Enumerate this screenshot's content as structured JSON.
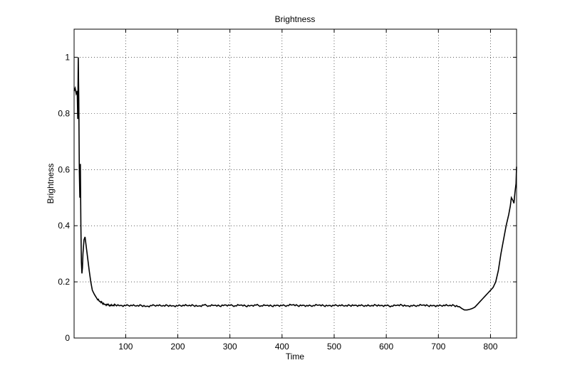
{
  "chart_data": {
    "type": "line",
    "title": "Brightness",
    "xlabel": "Time",
    "ylabel": "Brightness",
    "xlim": [
      1,
      850
    ],
    "ylim": [
      0,
      1.1
    ],
    "xticks": [
      100,
      200,
      300,
      400,
      500,
      600,
      700,
      800
    ],
    "yticks": [
      0,
      0.2,
      0.4,
      0.6,
      0.8,
      1
    ],
    "ytick_labels": [
      "0",
      "0.2",
      "0.4",
      "0.6",
      "0.8",
      "1"
    ],
    "grid": true,
    "line_color": "#000000",
    "series": [
      {
        "x": [
          1,
          3,
          5,
          7,
          8,
          9,
          10,
          11,
          12,
          13,
          14,
          15,
          16,
          17,
          18,
          20,
          22,
          24,
          26,
          28,
          30,
          33,
          36,
          40,
          45,
          50,
          55,
          60,
          65,
          70,
          75,
          80,
          90,
          100,
          110,
          120,
          130,
          140,
          150,
          160,
          170,
          180,
          190,
          200,
          210,
          220,
          230,
          240,
          250,
          260,
          270,
          280,
          290,
          300,
          310,
          320,
          330,
          340,
          350,
          360,
          370,
          380,
          390,
          400,
          410,
          420,
          430,
          440,
          450,
          460,
          470,
          480,
          490,
          500,
          510,
          520,
          530,
          540,
          550,
          560,
          570,
          580,
          590,
          600,
          610,
          620,
          630,
          640,
          650,
          660,
          670,
          680,
          690,
          700,
          710,
          720,
          730,
          740,
          745,
          750,
          755,
          760,
          765,
          770,
          775,
          780,
          785,
          790,
          795,
          800,
          805,
          810,
          815,
          820,
          825,
          830,
          835,
          838,
          840,
          843,
          845,
          847,
          849,
          850
        ],
        "y": [
          0.88,
          0.89,
          0.87,
          0.88,
          0.78,
          1.0,
          0.85,
          0.6,
          0.5,
          0.62,
          0.4,
          0.27,
          0.23,
          0.25,
          0.3,
          0.35,
          0.36,
          0.33,
          0.3,
          0.27,
          0.24,
          0.2,
          0.17,
          0.155,
          0.14,
          0.13,
          0.125,
          0.12,
          0.118,
          0.117,
          0.115,
          0.118,
          0.116,
          0.115,
          0.117,
          0.114,
          0.116,
          0.113,
          0.115,
          0.117,
          0.114,
          0.116,
          0.115,
          0.114,
          0.117,
          0.115,
          0.116,
          0.114,
          0.117,
          0.115,
          0.116,
          0.114,
          0.118,
          0.116,
          0.115,
          0.117,
          0.114,
          0.116,
          0.117,
          0.115,
          0.116,
          0.114,
          0.117,
          0.115,
          0.116,
          0.118,
          0.115,
          0.117,
          0.114,
          0.116,
          0.117,
          0.115,
          0.116,
          0.115,
          0.117,
          0.114,
          0.116,
          0.117,
          0.115,
          0.116,
          0.114,
          0.117,
          0.116,
          0.115,
          0.114,
          0.116,
          0.117,
          0.115,
          0.114,
          0.116,
          0.117,
          0.115,
          0.116,
          0.114,
          0.117,
          0.115,
          0.116,
          0.112,
          0.105,
          0.1,
          0.1,
          0.102,
          0.105,
          0.11,
          0.12,
          0.13,
          0.14,
          0.15,
          0.16,
          0.17,
          0.18,
          0.2,
          0.24,
          0.3,
          0.35,
          0.4,
          0.44,
          0.47,
          0.5,
          0.49,
          0.48,
          0.52,
          0.55,
          0.61
        ]
      }
    ]
  }
}
